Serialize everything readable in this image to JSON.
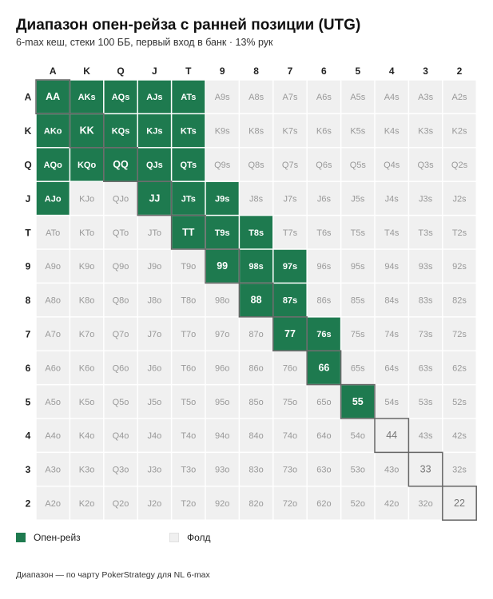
{
  "title": "Диапазон опен-рейза с ранней позиции (UTG)",
  "subtitle": "6-max кеш, стеки 100 ББ, первый вход в банк · 13% рук",
  "footer": "Диапазон — по чарту PokerStrategy для NL 6-max",
  "colors": {
    "raise": "#1e7a4f",
    "fold": "#f0f0f0",
    "raise_text": "#ffffff",
    "fold_text": "#999999",
    "pair_border": "#666666"
  },
  "legend": [
    {
      "label": "Опен-рейз",
      "color": "#1e7a4f"
    },
    {
      "label": "Фолд",
      "color": "#f0f0f0"
    }
  ],
  "chart_data": {
    "type": "heatmap",
    "title": "Диапазон опен-рейза с ранней позиции (UTG)",
    "subtitle": "6-max кеш, стеки 100 ББ, первый вход в банк · 13% рук",
    "columns": [
      "A",
      "K",
      "Q",
      "J",
      "T",
      "9",
      "8",
      "7",
      "6",
      "5",
      "4",
      "3",
      "2"
    ],
    "rows": [
      "A",
      "K",
      "Q",
      "J",
      "T",
      "9",
      "8",
      "7",
      "6",
      "5",
      "4",
      "3",
      "2"
    ],
    "cells": [
      [
        "AA",
        "AKs",
        "AQs",
        "AJs",
        "ATs",
        "A9s",
        "A8s",
        "A7s",
        "A6s",
        "A5s",
        "A4s",
        "A3s",
        "A2s"
      ],
      [
        "AKo",
        "KK",
        "KQs",
        "KJs",
        "KTs",
        "K9s",
        "K8s",
        "K7s",
        "K6s",
        "K5s",
        "K4s",
        "K3s",
        "K2s"
      ],
      [
        "AQo",
        "KQo",
        "QQ",
        "QJs",
        "QTs",
        "Q9s",
        "Q8s",
        "Q7s",
        "Q6s",
        "Q5s",
        "Q4s",
        "Q3s",
        "Q2s"
      ],
      [
        "AJo",
        "KJo",
        "QJo",
        "JJ",
        "JTs",
        "J9s",
        "J8s",
        "J7s",
        "J6s",
        "J5s",
        "J4s",
        "J3s",
        "J2s"
      ],
      [
        "ATo",
        "KTo",
        "QTo",
        "JTo",
        "TT",
        "T9s",
        "T8s",
        "T7s",
        "T6s",
        "T5s",
        "T4s",
        "T3s",
        "T2s"
      ],
      [
        "A9o",
        "K9o",
        "Q9o",
        "J9o",
        "T9o",
        "99",
        "98s",
        "97s",
        "96s",
        "95s",
        "94s",
        "93s",
        "92s"
      ],
      [
        "A8o",
        "K8o",
        "Q8o",
        "J8o",
        "T8o",
        "98o",
        "88",
        "87s",
        "86s",
        "85s",
        "84s",
        "83s",
        "82s"
      ],
      [
        "A7o",
        "K7o",
        "Q7o",
        "J7o",
        "T7o",
        "97o",
        "87o",
        "77",
        "76s",
        "75s",
        "74s",
        "73s",
        "72s"
      ],
      [
        "A6o",
        "K6o",
        "Q6o",
        "J6o",
        "T6o",
        "96o",
        "86o",
        "76o",
        "66",
        "65s",
        "64s",
        "63s",
        "62s"
      ],
      [
        "A5o",
        "K5o",
        "Q5o",
        "J5o",
        "T5o",
        "95o",
        "85o",
        "75o",
        "65o",
        "55",
        "54s",
        "53s",
        "52s"
      ],
      [
        "A4o",
        "K4o",
        "Q4o",
        "J4o",
        "T4o",
        "94o",
        "84o",
        "74o",
        "64o",
        "54o",
        "44",
        "43s",
        "42s"
      ],
      [
        "A3o",
        "K3o",
        "Q3o",
        "J3o",
        "T3o",
        "93o",
        "83o",
        "73o",
        "63o",
        "53o",
        "43o",
        "33",
        "32s"
      ],
      [
        "A2o",
        "K2o",
        "Q2o",
        "J2o",
        "T2o",
        "92o",
        "82o",
        "72o",
        "62o",
        "52o",
        "42o",
        "32o",
        "22"
      ]
    ],
    "action": [
      [
        1,
        1,
        1,
        1,
        1,
        0,
        0,
        0,
        0,
        0,
        0,
        0,
        0
      ],
      [
        1,
        1,
        1,
        1,
        1,
        0,
        0,
        0,
        0,
        0,
        0,
        0,
        0
      ],
      [
        1,
        1,
        1,
        1,
        1,
        0,
        0,
        0,
        0,
        0,
        0,
        0,
        0
      ],
      [
        1,
        0,
        0,
        1,
        1,
        1,
        0,
        0,
        0,
        0,
        0,
        0,
        0
      ],
      [
        0,
        0,
        0,
        0,
        1,
        1,
        1,
        0,
        0,
        0,
        0,
        0,
        0
      ],
      [
        0,
        0,
        0,
        0,
        0,
        1,
        1,
        1,
        0,
        0,
        0,
        0,
        0
      ],
      [
        0,
        0,
        0,
        0,
        0,
        0,
        1,
        1,
        0,
        0,
        0,
        0,
        0
      ],
      [
        0,
        0,
        0,
        0,
        0,
        0,
        0,
        1,
        1,
        0,
        0,
        0,
        0
      ],
      [
        0,
        0,
        0,
        0,
        0,
        0,
        0,
        0,
        1,
        0,
        0,
        0,
        0
      ],
      [
        0,
        0,
        0,
        0,
        0,
        0,
        0,
        0,
        0,
        1,
        0,
        0,
        0
      ],
      [
        0,
        0,
        0,
        0,
        0,
        0,
        0,
        0,
        0,
        0,
        0,
        0,
        0
      ],
      [
        0,
        0,
        0,
        0,
        0,
        0,
        0,
        0,
        0,
        0,
        0,
        0,
        0
      ],
      [
        0,
        0,
        0,
        0,
        0,
        0,
        0,
        0,
        0,
        0,
        0,
        0,
        0
      ]
    ],
    "action_legend": {
      "1": "Опен-рейз",
      "0": "Фолд"
    },
    "pairs_outlined": true
  }
}
